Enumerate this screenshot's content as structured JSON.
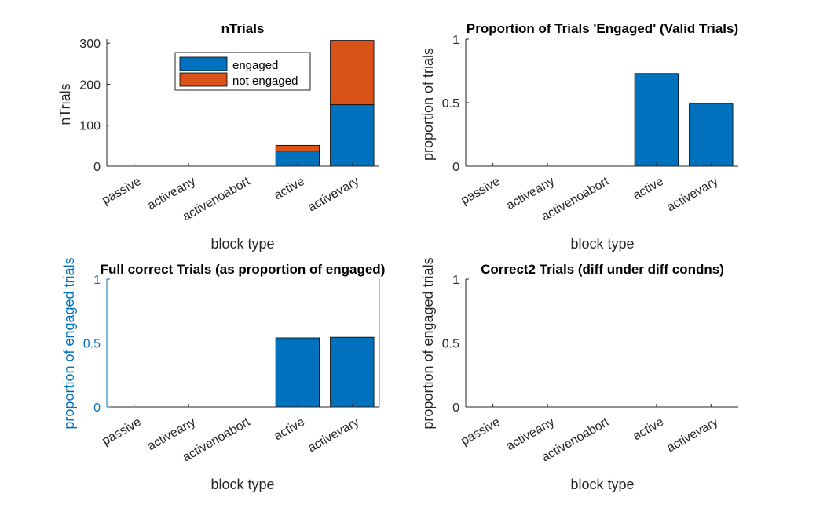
{
  "colors": {
    "engaged": "#0072BD",
    "not_engaged": "#D95319",
    "axis": "#262626",
    "left_axis_blue": "#0072BD",
    "right_axis_orange": "#D95319"
  },
  "chart_data": [
    {
      "type": "bar",
      "stacked": true,
      "title": "nTrials",
      "xlabel": "block type",
      "ylabel": "nTrials",
      "categories": [
        "passive",
        "activeany",
        "activenoabort",
        "active",
        "activevary"
      ],
      "ylim": [
        0,
        310
      ],
      "yticks": [
        0,
        100,
        200,
        300
      ],
      "legend": {
        "location": "top-right",
        "entries": [
          "engaged",
          "not engaged"
        ]
      },
      "series": [
        {
          "name": "engaged",
          "values": [
            0,
            0,
            0,
            37,
            150
          ]
        },
        {
          "name": "not engaged",
          "values": [
            0,
            0,
            0,
            14,
            157
          ]
        }
      ]
    },
    {
      "type": "bar",
      "title": "Proportion of Trials 'Engaged' (Valid Trials)",
      "xlabel": "block type",
      "ylabel": "proportion of trials",
      "categories": [
        "passive",
        "activeany",
        "activenoabort",
        "active",
        "activevary"
      ],
      "ylim": [
        0,
        1
      ],
      "yticks": [
        0,
        0.5,
        1
      ],
      "values": [
        0,
        0,
        0,
        0.73,
        0.49
      ]
    },
    {
      "type": "bar",
      "title": "Full correct Trials (as proportion of engaged)",
      "xlabel": "block type",
      "ylabel": "proportion of engaged trials",
      "categories": [
        "passive",
        "activeany",
        "activenoabort",
        "active",
        "activevary"
      ],
      "ylim": [
        0,
        1
      ],
      "yticks": [
        0,
        0.5,
        1
      ],
      "values": [
        0,
        0,
        0,
        0.54,
        0.545
      ],
      "reference_line": {
        "y": 0.5,
        "style": "dashed",
        "x_from": "passive",
        "x_to": "activevary"
      }
    },
    {
      "type": "bar",
      "title": "Correct2 Trials (diff under diff condns)",
      "xlabel": "block type",
      "ylabel": "proportion of engaged trials",
      "categories": [
        "passive",
        "activeany",
        "activenoabort",
        "active",
        "activevary"
      ],
      "ylim": [
        0,
        1
      ],
      "yticks": [
        0,
        0.5,
        1
      ],
      "values": [
        0,
        0,
        0,
        0,
        0
      ]
    }
  ]
}
